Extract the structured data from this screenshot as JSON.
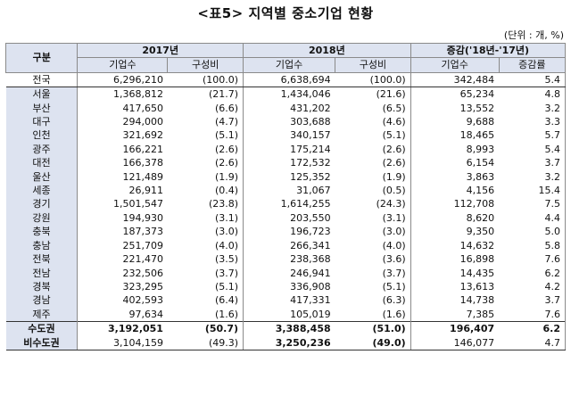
{
  "title": "<표5> 지역별 중소기업 현황",
  "unit": "(단위 : 개, %)",
  "header": {
    "gubun": "구분",
    "year1": "2017년",
    "year2": "2018년",
    "change": "증감('18년-'17년)",
    "col_count": "기업수",
    "col_ratio": "구성비",
    "col_rate": "증감률"
  },
  "rows": [
    {
      "name": "전국",
      "c17": "6,296,210",
      "r17": "(100.0)",
      "c18": "6,638,694",
      "r18": "(100.0)",
      "dc": "342,484",
      "dr": "5.4"
    },
    {
      "name": "서울",
      "c17": "1,368,812",
      "r17": "(21.7)",
      "c18": "1,434,046",
      "r18": "(21.6)",
      "dc": "65,234",
      "dr": "4.8"
    },
    {
      "name": "부산",
      "c17": "417,650",
      "r17": "(6.6)",
      "c18": "431,202",
      "r18": "(6.5)",
      "dc": "13,552",
      "dr": "3.2"
    },
    {
      "name": "대구",
      "c17": "294,000",
      "r17": "(4.7)",
      "c18": "303,688",
      "r18": "(4.6)",
      "dc": "9,688",
      "dr": "3.3"
    },
    {
      "name": "인천",
      "c17": "321,692",
      "r17": "(5.1)",
      "c18": "340,157",
      "r18": "(5.1)",
      "dc": "18,465",
      "dr": "5.7"
    },
    {
      "name": "광주",
      "c17": "166,221",
      "r17": "(2.6)",
      "c18": "175,214",
      "r18": "(2.6)",
      "dc": "8,993",
      "dr": "5.4"
    },
    {
      "name": "대전",
      "c17": "166,378",
      "r17": "(2.6)",
      "c18": "172,532",
      "r18": "(2.6)",
      "dc": "6,154",
      "dr": "3.7"
    },
    {
      "name": "울산",
      "c17": "121,489",
      "r17": "(1.9)",
      "c18": "125,352",
      "r18": "(1.9)",
      "dc": "3,863",
      "dr": "3.2"
    },
    {
      "name": "세종",
      "c17": "26,911",
      "r17": "(0.4)",
      "c18": "31,067",
      "r18": "(0.5)",
      "dc": "4,156",
      "dr": "15.4"
    },
    {
      "name": "경기",
      "c17": "1,501,547",
      "r17": "(23.8)",
      "c18": "1,614,255",
      "r18": "(24.3)",
      "dc": "112,708",
      "dr": "7.5"
    },
    {
      "name": "강원",
      "c17": "194,930",
      "r17": "(3.1)",
      "c18": "203,550",
      "r18": "(3.1)",
      "dc": "8,620",
      "dr": "4.4"
    },
    {
      "name": "충북",
      "c17": "187,373",
      "r17": "(3.0)",
      "c18": "196,723",
      "r18": "(3.0)",
      "dc": "9,350",
      "dr": "5.0"
    },
    {
      "name": "충남",
      "c17": "251,709",
      "r17": "(4.0)",
      "c18": "266,341",
      "r18": "(4.0)",
      "dc": "14,632",
      "dr": "5.8"
    },
    {
      "name": "전북",
      "c17": "221,470",
      "r17": "(3.5)",
      "c18": "238,368",
      "r18": "(3.6)",
      "dc": "16,898",
      "dr": "7.6"
    },
    {
      "name": "전남",
      "c17": "232,506",
      "r17": "(3.7)",
      "c18": "246,941",
      "r18": "(3.7)",
      "dc": "14,435",
      "dr": "6.2"
    },
    {
      "name": "경북",
      "c17": "323,295",
      "r17": "(5.1)",
      "c18": "336,908",
      "r18": "(5.1)",
      "dc": "13,613",
      "dr": "4.2"
    },
    {
      "name": "경남",
      "c17": "402,593",
      "r17": "(6.4)",
      "c18": "417,331",
      "r18": "(6.3)",
      "dc": "14,738",
      "dr": "3.7"
    },
    {
      "name": "제주",
      "c17": "97,634",
      "r17": "(1.6)",
      "c18": "105,019",
      "r18": "(1.6)",
      "dc": "7,385",
      "dr": "7.6"
    },
    {
      "name": "수도권",
      "c17": "3,192,051",
      "r17": "(50.7)",
      "c18": "3,388,458",
      "r18": "(51.0)",
      "dc": "196,407",
      "dr": "6.2"
    },
    {
      "name": "비수도권",
      "c17": "3,104,159",
      "r17": "(49.3)",
      "c18": "3,250,236",
      "r18": "(49.0)",
      "dc": "146,077",
      "dr": "4.7"
    }
  ]
}
